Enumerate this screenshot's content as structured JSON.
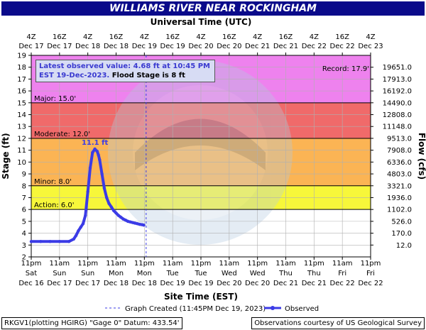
{
  "header": {
    "title": "WILLIAMS RIVER NEAR ROCKINGHAM",
    "top_axis_title": "Universal Time (UTC)"
  },
  "annotation": {
    "latest_line1": "Latest observed value: 4.68 ft at 10:45 PM",
    "latest_line2a": "EST 19-Dec-2023.",
    "latest_line2b": "Flood Stage is 8 ft",
    "peak_label": "11.1 ft",
    "record_label": "Record: 17.9'"
  },
  "legend": {
    "created": "Graph Created (11:45PM Dec 19, 2023)",
    "observed": "Observed"
  },
  "footer": {
    "left": "RKGV1(plotting HGIRG) \"Gage 0\" Datum: 433.54'",
    "right": "Observations courtesy of US Geological Survey"
  },
  "colors": {
    "title_bar": "#0a0a8a",
    "major": "#ee82ee",
    "moderate": "#f06a6a",
    "minor": "#fbb454",
    "action": "#f7f73a",
    "observed": "#3b3be6"
  },
  "chart_data": {
    "type": "line",
    "title": "WILLIAMS RIVER NEAR ROCKINGHAM",
    "xlabel": "Site Time (EST)",
    "ylabel": "Stage (ft)",
    "y2label": "Flow (cfs)",
    "x2label": "Universal Time (UTC)",
    "xlim_hours": [
      0,
      144
    ],
    "ylim": [
      2,
      19
    ],
    "grid": true,
    "bottom_ticks": [
      {
        "t": "11pm",
        "d": "Sat",
        "e": "Dec 16"
      },
      {
        "t": "11am",
        "d": "Sun",
        "e": "Dec 17"
      },
      {
        "t": "11pm",
        "d": "Sun",
        "e": "Dec 17"
      },
      {
        "t": "11am",
        "d": "Mon",
        "e": "Dec 18"
      },
      {
        "t": "11pm",
        "d": "Mon",
        "e": "Dec 18"
      },
      {
        "t": "11am",
        "d": "Tue",
        "e": "Dec 19"
      },
      {
        "t": "11pm",
        "d": "Tue",
        "e": "Dec 19"
      },
      {
        "t": "11am",
        "d": "Wed",
        "e": "Dec 20"
      },
      {
        "t": "11pm",
        "d": "Wed",
        "e": "Dec 20"
      },
      {
        "t": "11am",
        "d": "Thu",
        "e": "Dec 21"
      },
      {
        "t": "11pm",
        "d": "Thu",
        "e": "Dec 21"
      },
      {
        "t": "11am",
        "d": "Fri",
        "e": "Dec 22"
      },
      {
        "t": "11pm",
        "d": "Fri",
        "e": "Dec 22"
      }
    ],
    "top_ticks": [
      {
        "t": "4Z",
        "d": "Dec 17"
      },
      {
        "t": "16Z",
        "d": "Dec 17"
      },
      {
        "t": "4Z",
        "d": "Dec 18"
      },
      {
        "t": "16Z",
        "d": "Dec 18"
      },
      {
        "t": "4Z",
        "d": "Dec 19"
      },
      {
        "t": "16Z",
        "d": "Dec 19"
      },
      {
        "t": "4Z",
        "d": "Dec 20"
      },
      {
        "t": "16Z",
        "d": "Dec 20"
      },
      {
        "t": "4Z",
        "d": "Dec 21"
      },
      {
        "t": "16Z",
        "d": "Dec 21"
      },
      {
        "t": "4Z",
        "d": "Dec 22"
      },
      {
        "t": "16Z",
        "d": "Dec 22"
      },
      {
        "t": "4Z",
        "d": "Dec 23"
      }
    ],
    "y_ticks": [
      2,
      3,
      4,
      5,
      6,
      7,
      8,
      9,
      10,
      11,
      12,
      13,
      14,
      15,
      16,
      17,
      18,
      19
    ],
    "flow_ticks": [
      {
        "stage": 3,
        "label": "12.0"
      },
      {
        "stage": 4,
        "label": "170.0"
      },
      {
        "stage": 5,
        "label": "526.0"
      },
      {
        "stage": 6,
        "label": "1102.0"
      },
      {
        "stage": 7,
        "label": "1936.0"
      },
      {
        "stage": 8,
        "label": "3321.0"
      },
      {
        "stage": 9,
        "label": "4803.0"
      },
      {
        "stage": 10,
        "label": "6336.0"
      },
      {
        "stage": 11,
        "label": "7908.0"
      },
      {
        "stage": 12,
        "label": "9513.0"
      },
      {
        "stage": 13,
        "label": "11148.0"
      },
      {
        "stage": 14,
        "label": "12808.0"
      },
      {
        "stage": 15,
        "label": "14490.0"
      },
      {
        "stage": 16,
        "label": "16192.0"
      },
      {
        "stage": 17,
        "label": "17913.0"
      },
      {
        "stage": 18,
        "label": "19651.0"
      }
    ],
    "bands": [
      {
        "name": "Action",
        "label": "Action: 6.0'",
        "from": 6,
        "to": 8
      },
      {
        "name": "Minor",
        "label": "Minor: 8.0'",
        "from": 8,
        "to": 12
      },
      {
        "name": "Moderate",
        "label": "Moderate: 12.0'",
        "from": 12,
        "to": 15
      },
      {
        "name": "Major",
        "label": "Major: 15.0'",
        "from": 15,
        "to": 19
      }
    ],
    "record_stage": 17.9,
    "graph_created_hour": 48.75,
    "series": [
      {
        "name": "Observed",
        "x": [
          0,
          4,
          8,
          12,
          16,
          18,
          19,
          20,
          21,
          22,
          23,
          24,
          25,
          26,
          27,
          28,
          28.5,
          29,
          30,
          31,
          32,
          33,
          34,
          35,
          36,
          37,
          38,
          39,
          40,
          41,
          42,
          43,
          44,
          45,
          46,
          47,
          47.75
        ],
        "y": [
          3.3,
          3.3,
          3.3,
          3.3,
          3.3,
          3.5,
          3.8,
          4.2,
          4.5,
          4.8,
          5.5,
          7.5,
          9.5,
          10.8,
          11.1,
          10.9,
          10.6,
          10.2,
          9.0,
          7.8,
          7.0,
          6.5,
          6.2,
          5.9,
          5.7,
          5.5,
          5.35,
          5.2,
          5.1,
          5.0,
          4.95,
          4.9,
          4.85,
          4.8,
          4.75,
          4.72,
          4.68
        ]
      }
    ]
  }
}
